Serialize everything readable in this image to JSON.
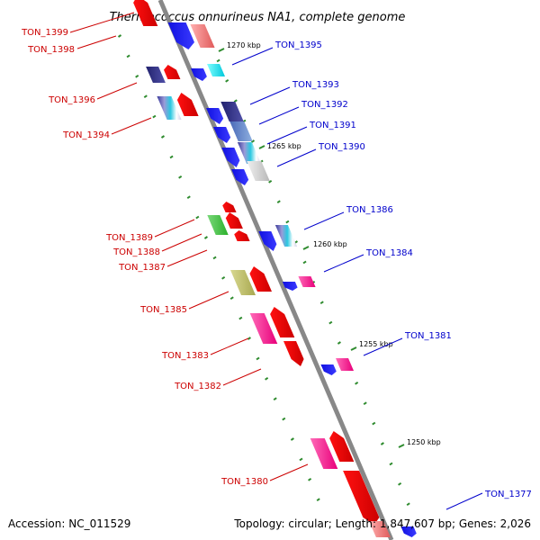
{
  "title": "Thermococcus onnurineus NA1, complete genome",
  "accession": "Accession: NC_011529",
  "topology": "Topology: circular; Length: 1,847,607 bp; Genes: 2,026",
  "colors": {
    "backbone": "#888888",
    "tick": "#2e8b2e",
    "left_label": "#cc0000",
    "right_label": "#0000cc"
  },
  "scale_marks": [
    {
      "label": "1270 kbp"
    },
    {
      "label": "1265 kbp"
    },
    {
      "label": "1260 kbp"
    },
    {
      "label": "1255 kbp"
    },
    {
      "label": "1250 kbp"
    }
  ],
  "left_genes": [
    {
      "name": "TON_1399"
    },
    {
      "name": "TON_1398"
    },
    {
      "name": "TON_1396"
    },
    {
      "name": "TON_1394"
    },
    {
      "name": "TON_1389"
    },
    {
      "name": "TON_1388"
    },
    {
      "name": "TON_1387"
    },
    {
      "name": "TON_1385"
    },
    {
      "name": "TON_1383"
    },
    {
      "name": "TON_1382"
    },
    {
      "name": "TON_1380"
    }
  ],
  "right_genes": [
    {
      "name": "TON_1395"
    },
    {
      "name": "TON_1393"
    },
    {
      "name": "TON_1392"
    },
    {
      "name": "TON_1391"
    },
    {
      "name": "TON_1390"
    },
    {
      "name": "TON_1386"
    },
    {
      "name": "TON_1384"
    },
    {
      "name": "TON_1381"
    },
    {
      "name": "TON_1377"
    }
  ]
}
